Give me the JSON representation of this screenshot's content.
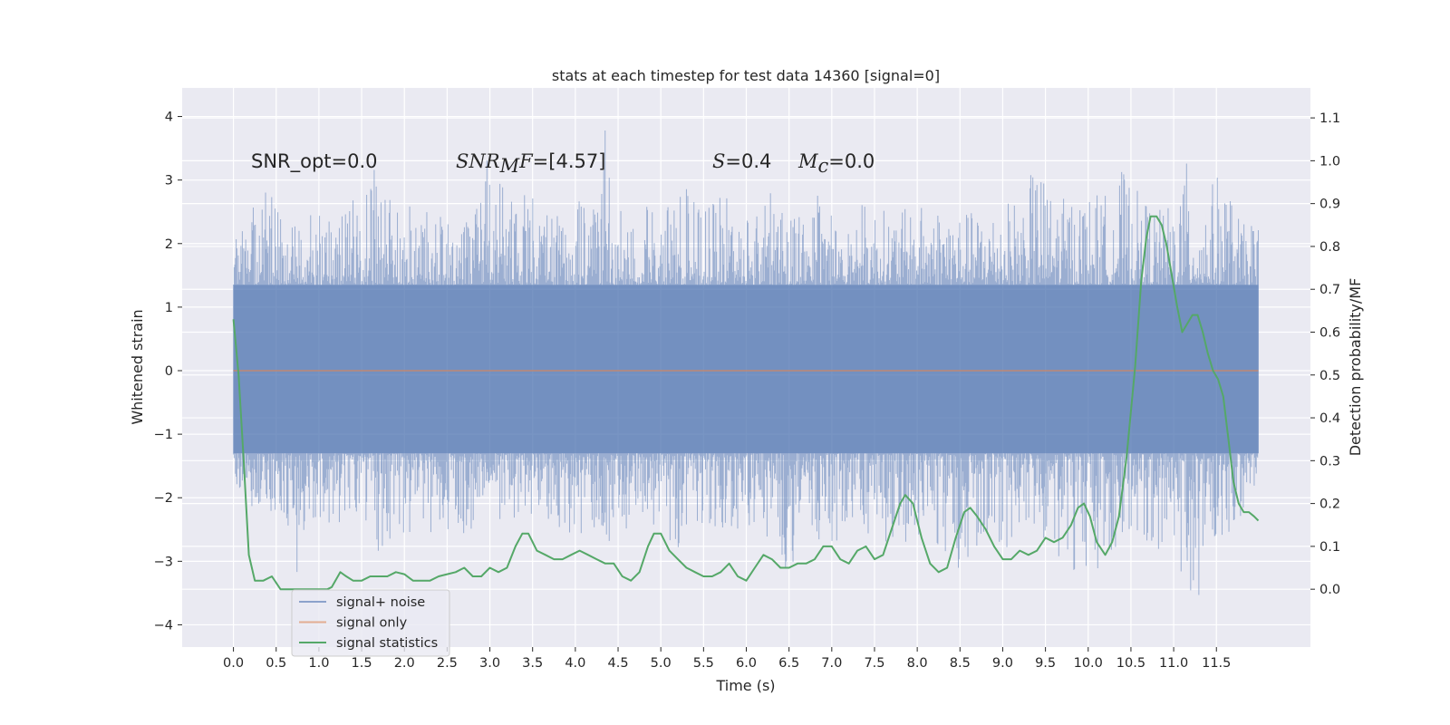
{
  "chart_data": {
    "type": "line",
    "title": "stats at each timestep for test data 14360 [signal=0]",
    "xlabel": "Time (s)",
    "ylabel": "Whitened strain",
    "y2label": "Detection probability/MF",
    "xlim": [
      -0.6,
      12.6
    ],
    "ylim": [
      -4.35,
      4.45
    ],
    "y2lim": [
      -0.135,
      1.17
    ],
    "x_ticks": [
      0.0,
      0.5,
      1.0,
      1.5,
      2.0,
      2.5,
      3.0,
      3.5,
      4.0,
      4.5,
      5.0,
      5.5,
      6.0,
      6.5,
      7.0,
      7.5,
      8.0,
      8.5,
      9.0,
      9.5,
      10.0,
      10.5,
      11.0,
      11.5
    ],
    "x_tick_labels": [
      "0.0",
      "0.5",
      "1.0",
      "1.5",
      "2.0",
      "2.5",
      "3.0",
      "3.5",
      "4.0",
      "4.5",
      "5.0",
      "5.5",
      "6.0",
      "6.5",
      "7.0",
      "7.5",
      "8.0",
      "8.5",
      "9.0",
      "9.5",
      "10.0",
      "10.5",
      "11.0",
      "11.5"
    ],
    "y_ticks": [
      -4,
      -3,
      -2,
      -1,
      0,
      1,
      2,
      3,
      4
    ],
    "y_tick_labels": [
      "−4",
      "−3",
      "−2",
      "−1",
      "0",
      "1",
      "2",
      "3",
      "4"
    ],
    "y2_ticks": [
      0.0,
      0.1,
      0.2,
      0.3,
      0.4,
      0.5,
      0.6,
      0.7,
      0.8,
      0.9,
      1.0,
      1.1
    ],
    "y2_tick_labels": [
      "0.0",
      "0.1",
      "0.2",
      "0.3",
      "0.4",
      "0.5",
      "0.6",
      "0.7",
      "0.8",
      "0.9",
      "1.0",
      "1.1"
    ],
    "grid": true,
    "legend_position": "lower-left",
    "series": [
      {
        "name": "signal+ noise",
        "color": "#4c72b0",
        "axis": "left",
        "x_range": [
          0.0,
          11.99
        ],
        "envelope_top": [
          [
            0.0,
            2.4
          ],
          [
            0.2,
            2.5
          ],
          [
            0.35,
            3.1
          ],
          [
            0.6,
            2.3
          ],
          [
            0.85,
            2.4
          ],
          [
            1.0,
            2.6
          ],
          [
            1.2,
            2.4
          ],
          [
            1.4,
            2.7
          ],
          [
            1.68,
            3.35
          ],
          [
            1.9,
            2.6
          ],
          [
            2.1,
            2.8
          ],
          [
            2.3,
            2.5
          ],
          [
            2.55,
            2.4
          ],
          [
            2.8,
            2.9
          ],
          [
            2.95,
            3.3
          ],
          [
            3.05,
            3.6
          ],
          [
            3.2,
            2.8
          ],
          [
            3.5,
            2.8
          ],
          [
            3.8,
            2.6
          ],
          [
            4.1,
            2.7
          ],
          [
            4.25,
            2.8
          ],
          [
            4.36,
            4.1
          ],
          [
            4.5,
            2.7
          ],
          [
            4.8,
            2.6
          ],
          [
            5.1,
            2.6
          ],
          [
            5.3,
            2.9
          ],
          [
            5.5,
            2.6
          ],
          [
            5.8,
            2.8
          ],
          [
            6.1,
            2.6
          ],
          [
            6.35,
            2.9
          ],
          [
            6.6,
            2.6
          ],
          [
            6.9,
            2.8
          ],
          [
            7.1,
            2.5
          ],
          [
            7.4,
            2.7
          ],
          [
            7.7,
            2.5
          ],
          [
            8.0,
            2.6
          ],
          [
            8.3,
            2.7
          ],
          [
            8.6,
            2.5
          ],
          [
            8.9,
            2.6
          ],
          [
            9.25,
            2.8
          ],
          [
            9.4,
            3.35
          ],
          [
            9.6,
            2.7
          ],
          [
            9.9,
            2.8
          ],
          [
            10.2,
            2.8
          ],
          [
            10.38,
            3.2
          ],
          [
            10.6,
            2.8
          ],
          [
            10.9,
            2.5
          ],
          [
            11.15,
            3.3
          ],
          [
            11.3,
            2.6
          ],
          [
            11.55,
            3.2
          ],
          [
            11.8,
            2.3
          ],
          [
            11.99,
            2.4
          ]
        ],
        "envelope_bottom": [
          [
            0.0,
            -1.6
          ],
          [
            0.1,
            -2.1
          ],
          [
            0.3,
            -2.2
          ],
          [
            0.5,
            -2.3
          ],
          [
            0.73,
            -3.4
          ],
          [
            0.9,
            -2.5
          ],
          [
            1.1,
            -2.5
          ],
          [
            1.35,
            -2.4
          ],
          [
            1.65,
            -3.1
          ],
          [
            1.9,
            -2.6
          ],
          [
            2.2,
            -2.6
          ],
          [
            2.5,
            -2.7
          ],
          [
            2.8,
            -2.5
          ],
          [
            3.1,
            -2.6
          ],
          [
            3.4,
            -2.3
          ],
          [
            3.7,
            -2.4
          ],
          [
            4.0,
            -2.7
          ],
          [
            4.3,
            -2.8
          ],
          [
            4.6,
            -2.5
          ],
          [
            4.9,
            -2.6
          ],
          [
            5.2,
            -2.8
          ],
          [
            5.5,
            -2.5
          ],
          [
            5.8,
            -2.7
          ],
          [
            6.1,
            -2.6
          ],
          [
            6.45,
            -3.3
          ],
          [
            6.7,
            -2.6
          ],
          [
            7.0,
            -2.9
          ],
          [
            7.3,
            -2.6
          ],
          [
            7.6,
            -2.8
          ],
          [
            7.9,
            -2.7
          ],
          [
            8.2,
            -2.9
          ],
          [
            8.5,
            -3.15
          ],
          [
            8.8,
            -2.7
          ],
          [
            9.1,
            -2.8
          ],
          [
            9.4,
            -2.7
          ],
          [
            9.7,
            -3.0
          ],
          [
            10.0,
            -3.4
          ],
          [
            10.3,
            -2.8
          ],
          [
            10.6,
            -2.6
          ],
          [
            10.9,
            -2.9
          ],
          [
            11.15,
            -3.3
          ],
          [
            11.25,
            -3.9
          ],
          [
            11.4,
            -2.8
          ],
          [
            11.6,
            -2.6
          ],
          [
            11.85,
            -2.5
          ],
          [
            11.99,
            -1.6
          ]
        ]
      },
      {
        "name": "signal only",
        "color": "#dd8452",
        "axis": "left",
        "points": [
          [
            0.0,
            0.0
          ],
          [
            11.99,
            0.0
          ]
        ]
      },
      {
        "name": "signal statistics",
        "color": "#55a868",
        "axis": "right",
        "points": [
          [
            0.0,
            0.63
          ],
          [
            0.06,
            0.5
          ],
          [
            0.12,
            0.3
          ],
          [
            0.18,
            0.08
          ],
          [
            0.25,
            0.02
          ],
          [
            0.35,
            0.02
          ],
          [
            0.45,
            0.03
          ],
          [
            0.55,
            0.0
          ],
          [
            0.7,
            0.0
          ],
          [
            0.85,
            0.0
          ],
          [
            1.0,
            0.0
          ],
          [
            1.1,
            0.0
          ],
          [
            1.15,
            0.005
          ],
          [
            1.25,
            0.04
          ],
          [
            1.32,
            0.03
          ],
          [
            1.4,
            0.02
          ],
          [
            1.5,
            0.02
          ],
          [
            1.6,
            0.03
          ],
          [
            1.7,
            0.03
          ],
          [
            1.8,
            0.03
          ],
          [
            1.9,
            0.04
          ],
          [
            2.0,
            0.035
          ],
          [
            2.1,
            0.02
          ],
          [
            2.2,
            0.02
          ],
          [
            2.3,
            0.02
          ],
          [
            2.4,
            0.03
          ],
          [
            2.5,
            0.035
          ],
          [
            2.6,
            0.04
          ],
          [
            2.7,
            0.05
          ],
          [
            2.8,
            0.03
          ],
          [
            2.9,
            0.03
          ],
          [
            3.0,
            0.05
          ],
          [
            3.1,
            0.04
          ],
          [
            3.2,
            0.05
          ],
          [
            3.3,
            0.1
          ],
          [
            3.38,
            0.13
          ],
          [
            3.45,
            0.13
          ],
          [
            3.55,
            0.09
          ],
          [
            3.65,
            0.08
          ],
          [
            3.75,
            0.07
          ],
          [
            3.85,
            0.07
          ],
          [
            3.95,
            0.08
          ],
          [
            4.05,
            0.09
          ],
          [
            4.15,
            0.08
          ],
          [
            4.25,
            0.07
          ],
          [
            4.35,
            0.06
          ],
          [
            4.45,
            0.06
          ],
          [
            4.55,
            0.03
          ],
          [
            4.65,
            0.02
          ],
          [
            4.75,
            0.04
          ],
          [
            4.85,
            0.1
          ],
          [
            4.92,
            0.13
          ],
          [
            5.0,
            0.13
          ],
          [
            5.1,
            0.09
          ],
          [
            5.2,
            0.07
          ],
          [
            5.3,
            0.05
          ],
          [
            5.4,
            0.04
          ],
          [
            5.5,
            0.03
          ],
          [
            5.6,
            0.03
          ],
          [
            5.7,
            0.04
          ],
          [
            5.8,
            0.06
          ],
          [
            5.9,
            0.03
          ],
          [
            6.0,
            0.02
          ],
          [
            6.1,
            0.05
          ],
          [
            6.2,
            0.08
          ],
          [
            6.3,
            0.07
          ],
          [
            6.4,
            0.05
          ],
          [
            6.5,
            0.05
          ],
          [
            6.6,
            0.06
          ],
          [
            6.7,
            0.06
          ],
          [
            6.8,
            0.07
          ],
          [
            6.9,
            0.1
          ],
          [
            7.0,
            0.1
          ],
          [
            7.1,
            0.07
          ],
          [
            7.2,
            0.06
          ],
          [
            7.3,
            0.09
          ],
          [
            7.4,
            0.1
          ],
          [
            7.5,
            0.07
          ],
          [
            7.6,
            0.08
          ],
          [
            7.7,
            0.14
          ],
          [
            7.8,
            0.2
          ],
          [
            7.86,
            0.22
          ],
          [
            7.95,
            0.2
          ],
          [
            8.05,
            0.12
          ],
          [
            8.15,
            0.06
          ],
          [
            8.25,
            0.04
          ],
          [
            8.35,
            0.05
          ],
          [
            8.45,
            0.12
          ],
          [
            8.55,
            0.18
          ],
          [
            8.62,
            0.19
          ],
          [
            8.7,
            0.17
          ],
          [
            8.8,
            0.14
          ],
          [
            8.9,
            0.1
          ],
          [
            9.0,
            0.07
          ],
          [
            9.1,
            0.07
          ],
          [
            9.2,
            0.09
          ],
          [
            9.3,
            0.08
          ],
          [
            9.4,
            0.09
          ],
          [
            9.5,
            0.12
          ],
          [
            9.6,
            0.11
          ],
          [
            9.7,
            0.12
          ],
          [
            9.8,
            0.15
          ],
          [
            9.88,
            0.19
          ],
          [
            9.95,
            0.2
          ],
          [
            10.02,
            0.17
          ],
          [
            10.1,
            0.11
          ],
          [
            10.2,
            0.08
          ],
          [
            10.28,
            0.11
          ],
          [
            10.36,
            0.17
          ],
          [
            10.45,
            0.31
          ],
          [
            10.55,
            0.52
          ],
          [
            10.62,
            0.72
          ],
          [
            10.68,
            0.82
          ],
          [
            10.73,
            0.87
          ],
          [
            10.8,
            0.87
          ],
          [
            10.86,
            0.85
          ],
          [
            10.92,
            0.8
          ],
          [
            10.98,
            0.73
          ],
          [
            11.04,
            0.66
          ],
          [
            11.1,
            0.6
          ],
          [
            11.16,
            0.62
          ],
          [
            11.22,
            0.64
          ],
          [
            11.28,
            0.64
          ],
          [
            11.34,
            0.6
          ],
          [
            11.4,
            0.55
          ],
          [
            11.46,
            0.51
          ],
          [
            11.52,
            0.49
          ],
          [
            11.58,
            0.45
          ],
          [
            11.64,
            0.35
          ],
          [
            11.7,
            0.25
          ],
          [
            11.76,
            0.2
          ],
          [
            11.82,
            0.18
          ],
          [
            11.88,
            0.18
          ],
          [
            11.94,
            0.17
          ],
          [
            11.99,
            0.16
          ]
        ]
      }
    ],
    "annotations": [
      {
        "text": "SNR_opt=0.0"
      },
      {
        "italic": "SNR",
        "sub": "M",
        "italic2": "F",
        "rest": "=[4.57]"
      },
      {
        "italic": "S",
        "rest": "=0.4"
      },
      {
        "italic": "M",
        "sub": "c",
        "rest": "=0.0"
      }
    ],
    "legend": [
      {
        "label": "signal+ noise",
        "color": "#4c72b0"
      },
      {
        "label": "signal only",
        "color": "#dd8452"
      },
      {
        "label": "signal statistics",
        "color": "#55a868"
      }
    ]
  }
}
